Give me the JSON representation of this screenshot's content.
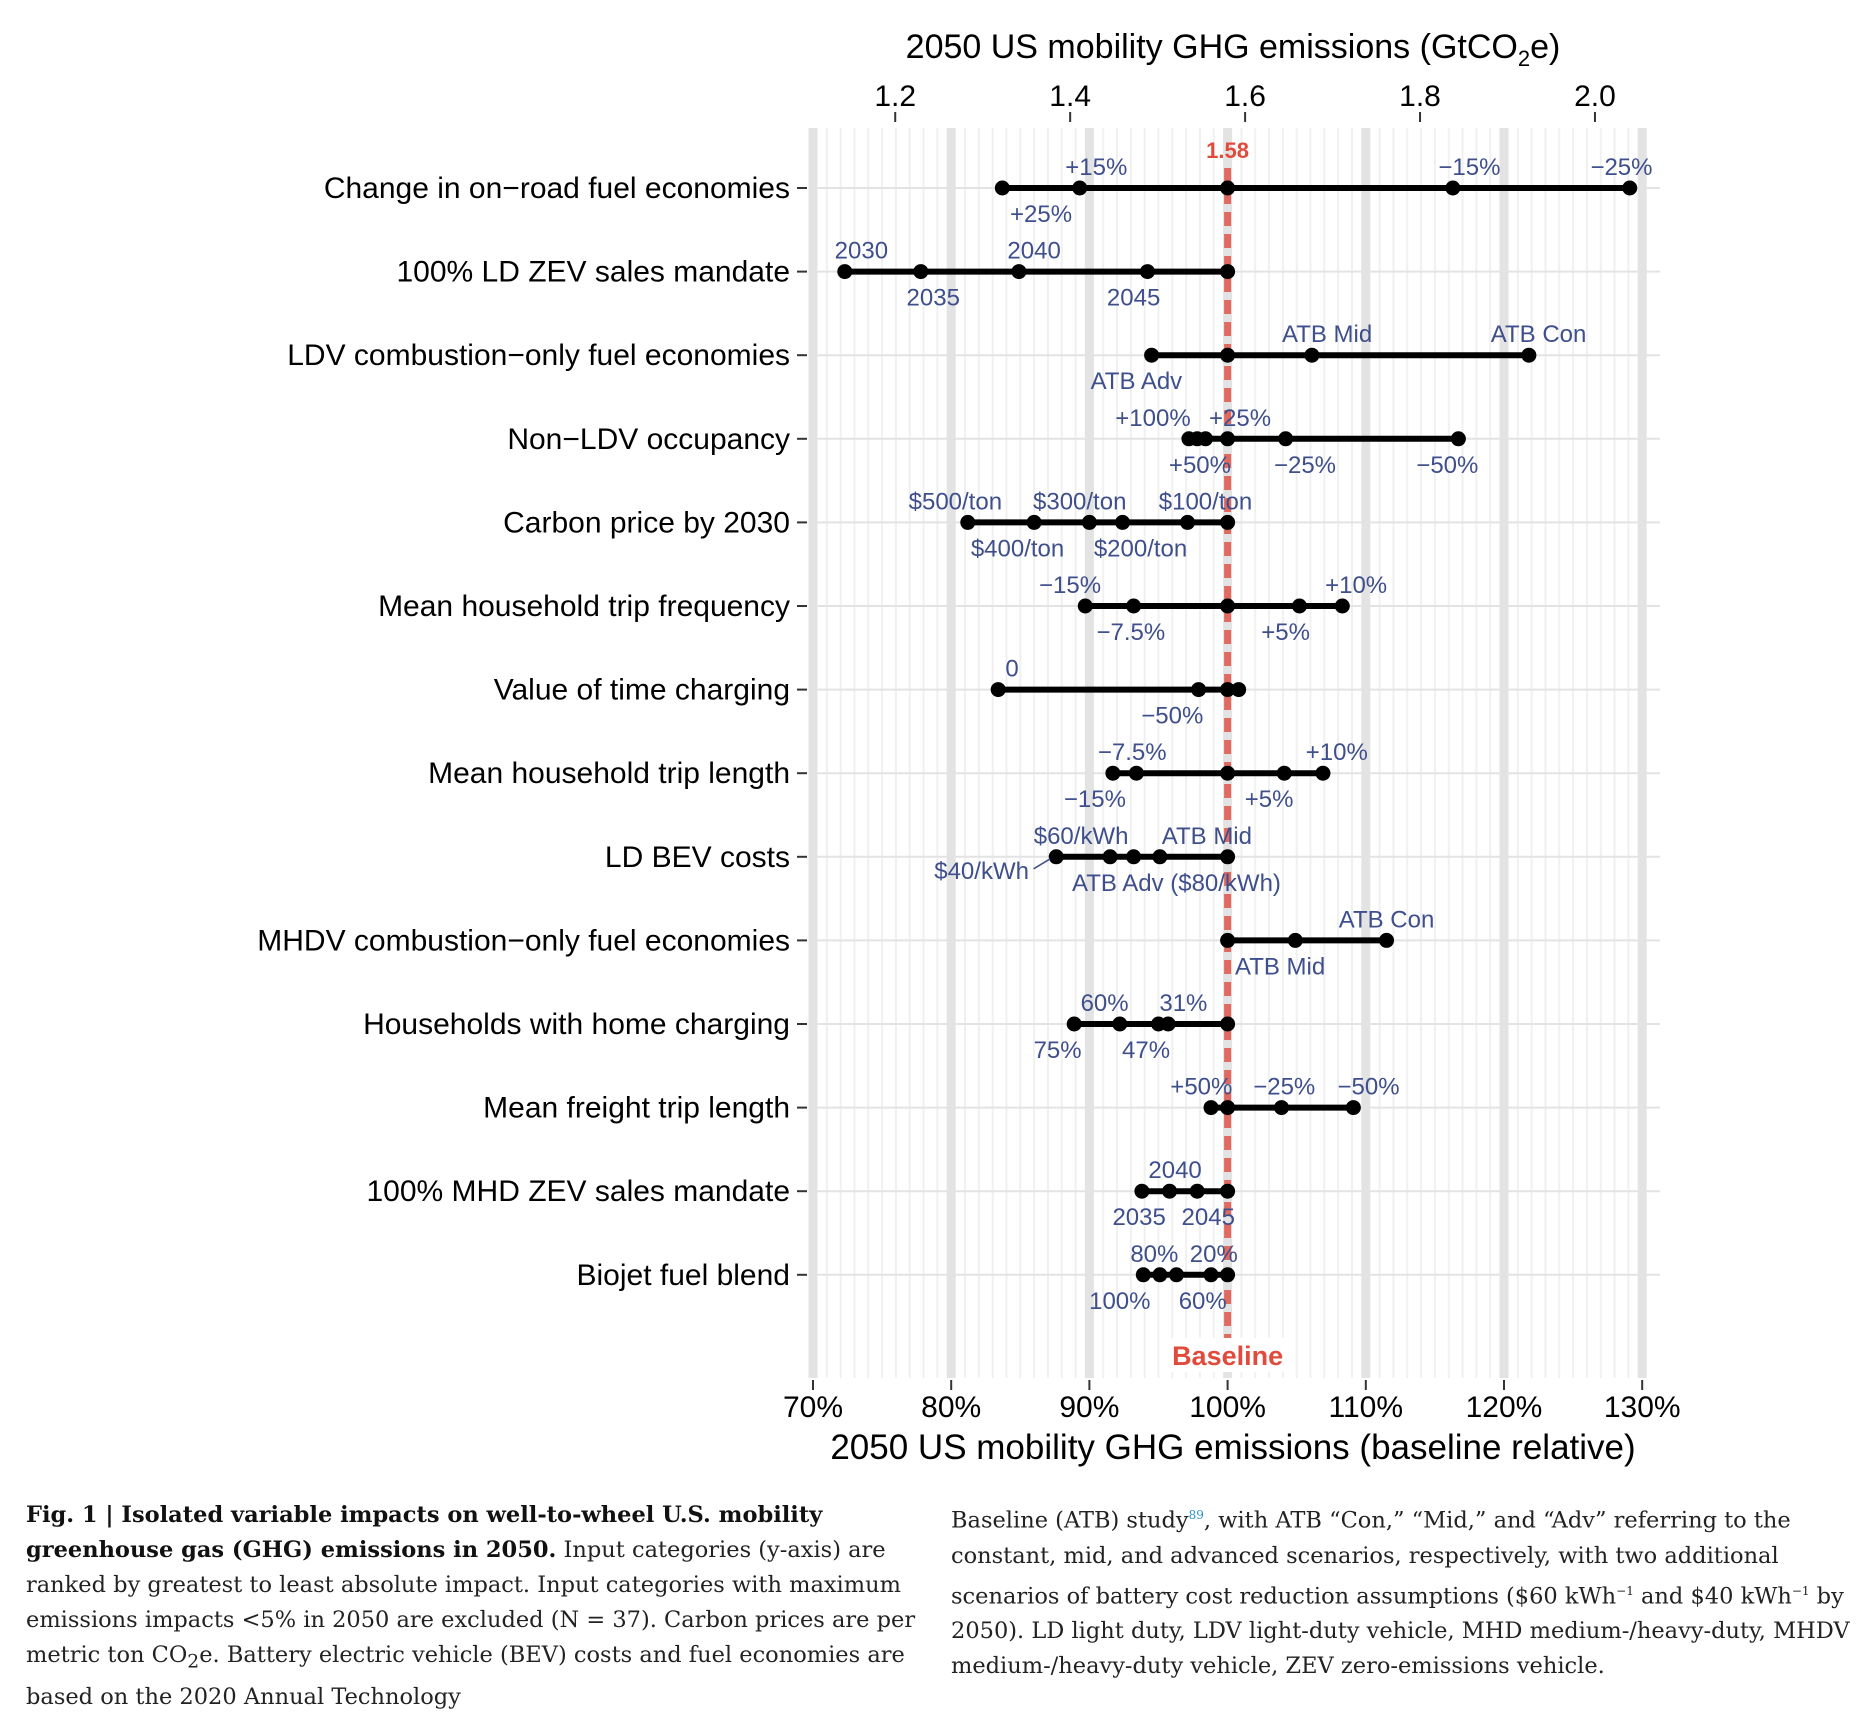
{
  "chart_data": {
    "type": "dot-range",
    "title_top": "2050 US mobility GHG emissions (GtCO",
    "title_top_sub": "2",
    "title_top_tail": "e)",
    "xlabel_bottom": "2050 US mobility GHG emissions (baseline relative)",
    "top_ticks": [
      1.2,
      1.4,
      1.6,
      1.8,
      2.0
    ],
    "top_tick_labels": [
      "1.2",
      "1.4",
      "1.6",
      "1.8",
      "2.0"
    ],
    "bottom_ticks": [
      70,
      80,
      90,
      100,
      110,
      120,
      130
    ],
    "bottom_tick_labels": [
      "70%",
      "80%",
      "90%",
      "100%",
      "110%",
      "120%",
      "130%"
    ],
    "xlim": [
      70,
      130.5
    ],
    "baseline_value": 100,
    "baseline_abs_label": "1.58",
    "baseline_label": "Baseline",
    "colors": {
      "baseline": "#e06a5f",
      "baseline_text": "#e04b3c",
      "annotation": "#3f4f8c",
      "points": "#000000",
      "grid_major": "#e3e3e3",
      "grid_minor": "#f0f0f0"
    },
    "categories": [
      {
        "label": "Change in on−road fuel economies",
        "points": [
          83.7,
          89.3,
          100,
          116.3,
          129.1
        ],
        "annotations": [
          {
            "text": "+15%",
            "x": 90.5,
            "pos": "above"
          },
          {
            "text": "+25%",
            "x": 86.5,
            "pos": "below"
          },
          {
            "text": "−15%",
            "x": 117.5,
            "pos": "above"
          },
          {
            "text": "−25%",
            "x": 128.5,
            "pos": "above"
          }
        ]
      },
      {
        "label": "100% LD ZEV sales mandate",
        "points": [
          72.3,
          77.8,
          84.9,
          94.2,
          100
        ],
        "annotations": [
          {
            "text": "2030",
            "x": 73.5,
            "pos": "above"
          },
          {
            "text": "2035",
            "x": 78.7,
            "pos": "below"
          },
          {
            "text": "2040",
            "x": 86.0,
            "pos": "above"
          },
          {
            "text": "2045",
            "x": 93.2,
            "pos": "below"
          }
        ]
      },
      {
        "label": "LDV combustion−only fuel economies",
        "points": [
          94.5,
          100,
          106.1,
          121.8
        ],
        "annotations": [
          {
            "text": "ATB Mid",
            "x": 107.2,
            "pos": "above"
          },
          {
            "text": "ATB Con",
            "x": 122.5,
            "pos": "above"
          },
          {
            "text": "ATB Adv",
            "x": 93.4,
            "pos": "below"
          }
        ]
      },
      {
        "label": "Non−LDV occupancy",
        "points": [
          97.2,
          97.8,
          98.4,
          100,
          104.2,
          116.7
        ],
        "annotations": [
          {
            "text": "+100%",
            "x": 94.6,
            "pos": "above"
          },
          {
            "text": "+25%",
            "x": 100.9,
            "pos": "above"
          },
          {
            "text": "+50%",
            "x": 98.0,
            "pos": "below"
          },
          {
            "text": "−25%",
            "x": 105.6,
            "pos": "below"
          },
          {
            "text": "−50%",
            "x": 115.9,
            "pos": "below"
          }
        ]
      },
      {
        "label": "Carbon price by 2030",
        "points": [
          81.2,
          86.0,
          90.0,
          92.4,
          97.1,
          100
        ],
        "annotations": [
          {
            "text": "$500/ton",
            "x": 80.3,
            "pos": "above"
          },
          {
            "text": "$300/ton",
            "x": 89.3,
            "pos": "above"
          },
          {
            "text": "$100/ton",
            "x": 98.4,
            "pos": "above"
          },
          {
            "text": "$400/ton",
            "x": 84.8,
            "pos": "below"
          },
          {
            "text": "$200/ton",
            "x": 93.7,
            "pos": "below"
          }
        ]
      },
      {
        "label": "Mean household trip frequency",
        "points": [
          89.7,
          93.2,
          100,
          105.2,
          108.3
        ],
        "annotations": [
          {
            "text": "−15%",
            "x": 88.6,
            "pos": "above"
          },
          {
            "text": "−7.5%",
            "x": 93.0,
            "pos": "below"
          },
          {
            "text": "+5%",
            "x": 104.2,
            "pos": "below"
          },
          {
            "text": "+10%",
            "x": 109.3,
            "pos": "above"
          }
        ]
      },
      {
        "label": "Value of time charging",
        "points": [
          83.4,
          97.9,
          100,
          100.8
        ],
        "annotations": [
          {
            "text": "0",
            "x": 84.4,
            "pos": "above"
          },
          {
            "text": "−50%",
            "x": 96.0,
            "pos": "below"
          }
        ]
      },
      {
        "label": "Mean household trip length",
        "points": [
          91.7,
          93.4,
          100,
          104.1,
          106.9
        ],
        "annotations": [
          {
            "text": "−7.5%",
            "x": 93.1,
            "pos": "above"
          },
          {
            "text": "−15%",
            "x": 90.4,
            "pos": "below"
          },
          {
            "text": "+5%",
            "x": 103.0,
            "pos": "below"
          },
          {
            "text": "+10%",
            "x": 107.9,
            "pos": "above"
          }
        ]
      },
      {
        "label": "LD BEV costs",
        "points": [
          87.6,
          91.5,
          93.2,
          95.1,
          100
        ],
        "annotations": [
          {
            "text": "$60/kWh",
            "x": 89.4,
            "pos": "above"
          },
          {
            "text": "ATB Mid",
            "x": 98.5,
            "pos": "above"
          },
          {
            "text": "$40/kWh",
            "x": 82.2,
            "pos": "below-left"
          },
          {
            "text": "ATB Adv ($80/kWh)",
            "x": 96.3,
            "pos": "below"
          }
        ]
      },
      {
        "label": "MHDV combustion−only fuel economies",
        "points": [
          100,
          104.9,
          111.5
        ],
        "annotations": [
          {
            "text": "ATB Con",
            "x": 111.5,
            "pos": "above"
          },
          {
            "text": "ATB Mid",
            "x": 103.8,
            "pos": "below"
          }
        ]
      },
      {
        "label": "Households with home charging",
        "points": [
          88.9,
          92.2,
          95.0,
          95.7,
          100
        ],
        "annotations": [
          {
            "text": "60%",
            "x": 91.1,
            "pos": "above"
          },
          {
            "text": "31%",
            "x": 96.8,
            "pos": "above"
          },
          {
            "text": "75%",
            "x": 87.7,
            "pos": "below"
          },
          {
            "text": "47%",
            "x": 94.1,
            "pos": "below"
          }
        ]
      },
      {
        "label": "Mean freight trip length",
        "points": [
          98.8,
          100,
          103.9,
          109.1
        ],
        "annotations": [
          {
            "text": "+50%",
            "x": 98.1,
            "pos": "above"
          },
          {
            "text": "−25%",
            "x": 104.1,
            "pos": "above"
          },
          {
            "text": "−50%",
            "x": 110.2,
            "pos": "above"
          }
        ]
      },
      {
        "label": "100% MHD ZEV sales mandate",
        "points": [
          93.8,
          95.8,
          97.8,
          100
        ],
        "annotations": [
          {
            "text": "2040",
            "x": 96.2,
            "pos": "above"
          },
          {
            "text": "2035",
            "x": 93.6,
            "pos": "below"
          },
          {
            "text": "2045",
            "x": 98.6,
            "pos": "below"
          }
        ]
      },
      {
        "label": "Biojet fuel blend",
        "points": [
          93.9,
          95.1,
          96.3,
          98.8,
          100
        ],
        "annotations": [
          {
            "text": "80%",
            "x": 94.7,
            "pos": "above"
          },
          {
            "text": "20%",
            "x": 99.0,
            "pos": "above"
          },
          {
            "text": "100%",
            "x": 92.2,
            "pos": "below"
          },
          {
            "text": "60%",
            "x": 98.2,
            "pos": "below"
          }
        ]
      }
    ]
  },
  "caption": {
    "fig_label": "Fig. 1 | Isolated variable impacts on well-to-wheel U.S. mobility greenhouse gas (GHG) emissions in 2050.",
    "left_text": "Input categories (y-axis) are ranked by greatest to least absolute impact. Input categories with maximum emissions impacts <5% in 2050 are excluded (N = 37). Carbon prices are per metric ton CO",
    "left_sub": "2",
    "left_tail": "e. Battery electric vehicle (BEV) costs and fuel economies are based on the 2020 Annual Technology",
    "right_pre": "Baseline (ATB) study",
    "right_cite": "89",
    "right_text": ", with ATB “Con,” “Mid,” and “Adv” referring to the constant, mid, and advanced scenarios, respectively, with two additional scenarios of battery cost reduction assumptions ($60 kWh",
    "right_sup1": "−1",
    "right_mid": " and $40 kWh",
    "right_sup2": "−1",
    "right_tail": " by 2050). LD light duty, LDV light-duty vehicle, MHD medium-/heavy-duty, MHDV medium-/heavy-duty vehicle, ZEV zero-emissions vehicle."
  }
}
